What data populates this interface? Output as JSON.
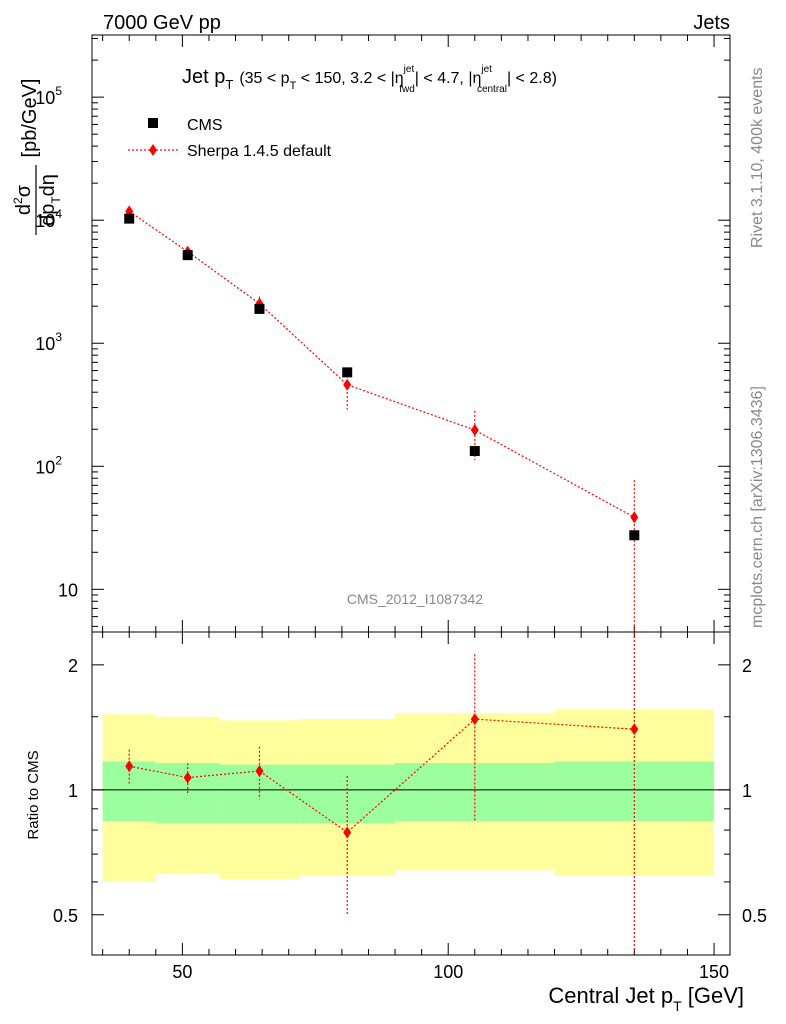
{
  "header": {
    "left": "7000 GeV pp",
    "right": "Jets"
  },
  "side_text": {
    "rivet": "Rivet 3.1.10,  400k events",
    "mcplots": "mcplots.cern.ch [arXiv:1306.3436]"
  },
  "watermark": "CMS_2012_I1087342",
  "title": {
    "main": "Jet p",
    "main_sub": "T",
    "range_a": "(35 < p",
    "range_a_sub": "T",
    "range_b": " < 150, 3.2 < |η",
    "fwd_sup": "jet",
    "fwd_sub": "fwd",
    "range_c": "| < 4.7, |η",
    "central_sup": "jet",
    "central_sub": "central",
    "range_d": "| < 2.8)"
  },
  "axes": {
    "y_main_label": "[pb/GeV]",
    "y_ratio_label": "Ratio to CMS",
    "x_label": "Central Jet p",
    "x_label_sub": "T",
    "x_label_unit": " [GeV]",
    "x_ticks": [
      "50",
      "100",
      "150"
    ],
    "y_main_ticks": [
      "10",
      "10",
      "10",
      "10",
      "10"
    ],
    "y_main_tick_exps": [
      "",
      "2",
      "3",
      "4",
      "5"
    ],
    "y_ratio_ticks": [
      "0.5",
      "1",
      "2"
    ]
  },
  "legend": {
    "data_label": "CMS",
    "mc_label": "Sherpa 1.4.5 default"
  },
  "colors": {
    "data": "#000000",
    "mc": "#ff0000",
    "band_inner": "#9cfe9c",
    "band_outer": "#fefe9c"
  },
  "chart_data": {
    "type": "scatter",
    "x_scale": "linear",
    "y_scale_main": "log",
    "y_scale_ratio": "log",
    "xlim": [
      33,
      153
    ],
    "ylim_main": [
      4.5,
      320000
    ],
    "ylim_ratio": [
      0.4,
      2.4
    ],
    "bins": [
      [
        35,
        45
      ],
      [
        45,
        57
      ],
      [
        57,
        72
      ],
      [
        72,
        90
      ],
      [
        90,
        120
      ],
      [
        120,
        150
      ]
    ],
    "series": [
      {
        "name": "CMS",
        "x": [
          40,
          51,
          64.5,
          81,
          105,
          135
        ],
        "y": [
          10300,
          5200,
          1900,
          580,
          133,
          27.5
        ],
        "ratio_band_inner": [
          [
            0.84,
            1.17
          ],
          [
            0.83,
            1.16
          ],
          [
            0.83,
            1.15
          ],
          [
            0.83,
            1.15
          ],
          [
            0.84,
            1.16
          ],
          [
            0.84,
            1.17
          ]
        ],
        "ratio_band_outer": [
          [
            0.6,
            1.52
          ],
          [
            0.63,
            1.5
          ],
          [
            0.61,
            1.47
          ],
          [
            0.62,
            1.48
          ],
          [
            0.64,
            1.53
          ],
          [
            0.62,
            1.56
          ]
        ]
      },
      {
        "name": "Sherpa 1.4.5 default",
        "x": [
          40,
          51,
          64.5,
          81,
          105,
          135
        ],
        "y": [
          11800,
          5550,
          2100,
          460,
          197,
          38.5
        ],
        "y_err_low": [
          10800,
          5050,
          1800,
          290,
          112,
          0.1
        ],
        "y_err_high": [
          12800,
          6050,
          2400,
          630,
          282,
          77
        ],
        "ratio": [
          1.14,
          1.07,
          1.11,
          0.79,
          1.48,
          1.4
        ],
        "ratio_err_low": [
          1.03,
          0.97,
          0.95,
          0.5,
          0.84,
          0.1
        ],
        "ratio_err_high": [
          1.25,
          1.16,
          1.27,
          1.08,
          2.12,
          2.5
        ]
      }
    ]
  }
}
